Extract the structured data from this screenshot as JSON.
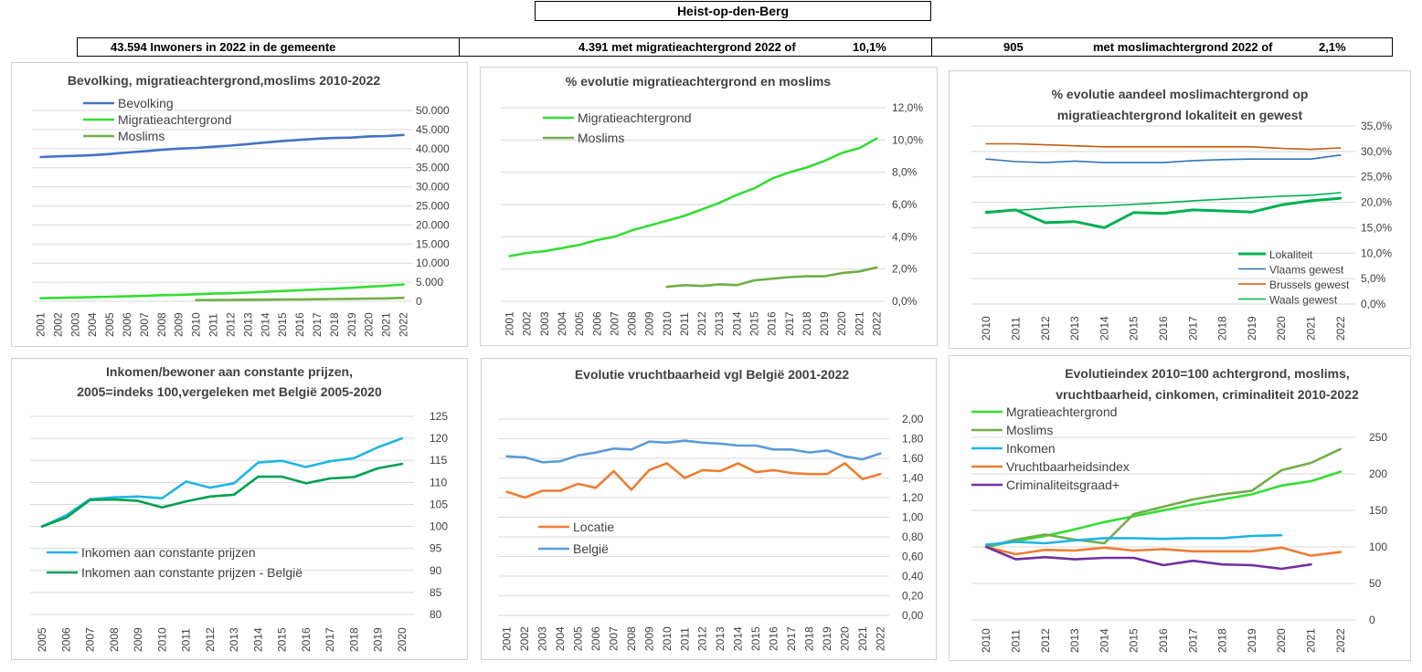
{
  "header": {
    "municipality": "Heist-op-den-Berg",
    "stat1": "43.594 Inwoners in 2022 in de gemeente",
    "stat2_text": "4.391 met migratieachtergrond 2022 of",
    "stat2_pct": "10,1%",
    "stat3_num": "905",
    "stat3_text": "met moslimachtergrond 2022 of",
    "stat3_pct": "2,1%"
  },
  "chart_data": [
    {
      "id": "c1",
      "type": "line",
      "title": [
        "Bevolking, migratieachtergrond,moslims  2010-2022"
      ],
      "x": [
        "2001",
        "2002",
        "2003",
        "2004",
        "2005",
        "2006",
        "2007",
        "2008",
        "2009",
        "2010",
        "2011",
        "2012",
        "2013",
        "2014",
        "2015",
        "2016",
        "2017",
        "2018",
        "2019",
        "2020",
        "2021",
        "2022"
      ],
      "ylim": [
        0,
        50000
      ],
      "yticks": [
        "0",
        "5.000",
        "10.000",
        "15.000",
        "20.000",
        "25.000",
        "30.000",
        "35.000",
        "40.000",
        "45.000",
        "50.000"
      ],
      "grid": true,
      "series": [
        {
          "name": "Bevolking",
          "color": "#4472C4",
          "values": [
            37800,
            38000,
            38100,
            38300,
            38600,
            39000,
            39300,
            39700,
            40000,
            40200,
            40500,
            40800,
            41200,
            41600,
            42000,
            42300,
            42600,
            42800,
            42900,
            43200,
            43300,
            43594
          ]
        },
        {
          "name": "Migratieachtergrond",
          "color": "#33DD33",
          "values": [
            800,
            900,
            1000,
            1100,
            1200,
            1300,
            1400,
            1600,
            1700,
            1850,
            2000,
            2100,
            2300,
            2500,
            2700,
            2900,
            3100,
            3300,
            3550,
            3800,
            4100,
            4391
          ]
        },
        {
          "name": "Moslims",
          "color": "#70AD47",
          "values": [
            null,
            null,
            null,
            null,
            null,
            null,
            null,
            null,
            null,
            300,
            330,
            350,
            400,
            430,
            470,
            500,
            550,
            600,
            650,
            710,
            760,
            905
          ]
        }
      ]
    },
    {
      "id": "c2",
      "type": "line",
      "title": [
        "% evolutie migratieachtergrond  en moslims"
      ],
      "x": [
        "2001",
        "2002",
        "2003",
        "2004",
        "2005",
        "2006",
        "2007",
        "2008",
        "2009",
        "2010",
        "2011",
        "2012",
        "2013",
        "2014",
        "2015",
        "2016",
        "2017",
        "2018",
        "2019",
        "2020",
        "2021",
        "2022"
      ],
      "ylim": [
        0,
        12
      ],
      "yticks": [
        "0,0%",
        "2,0%",
        "4,0%",
        "6,0%",
        "8,0%",
        "10,0%",
        "12,0%"
      ],
      "grid": true,
      "series": [
        {
          "name": "Migratieachtergrond",
          "color": "#33DD33",
          "values": [
            2.8,
            3.0,
            3.1,
            3.3,
            3.5,
            3.8,
            4.0,
            4.4,
            4.7,
            5.0,
            5.3,
            5.7,
            6.1,
            6.6,
            7.0,
            7.6,
            8.0,
            8.3,
            8.7,
            9.2,
            9.5,
            10.1
          ]
        },
        {
          "name": "Moslims",
          "color": "#70AD47",
          "values": [
            null,
            null,
            null,
            null,
            null,
            null,
            null,
            null,
            null,
            0.9,
            1.0,
            0.95,
            1.05,
            1.0,
            1.3,
            1.4,
            1.5,
            1.55,
            1.55,
            1.75,
            1.85,
            2.1
          ]
        }
      ]
    },
    {
      "id": "c3",
      "type": "line",
      "title": [
        "% evolutie aandeel moslimachtergrond op",
        "migratieachtergrond lokaliteit en gewest"
      ],
      "x": [
        "2010",
        "2011",
        "2012",
        "2013",
        "2014",
        "2015",
        "2016",
        "2017",
        "2018",
        "2019",
        "2020",
        "2021",
        "2022"
      ],
      "ylim": [
        0,
        35
      ],
      "yticks": [
        "0,0%",
        "5,0%",
        "10,0%",
        "15,0%",
        "20,0%",
        "25,0%",
        "30,0%",
        "35,0%"
      ],
      "grid": true,
      "series": [
        {
          "name": "Lokaliteit",
          "color": "#00B050",
          "width": 3,
          "values": [
            18.0,
            18.5,
            16.0,
            16.2,
            15.0,
            18.0,
            17.8,
            18.5,
            18.3,
            18.1,
            19.5,
            20.3,
            20.8
          ]
        },
        {
          "name": "Vlaams gewest",
          "color": "#2E75B6",
          "width": 1.6,
          "values": [
            28.5,
            28.0,
            27.8,
            28.1,
            27.8,
            27.8,
            27.8,
            28.2,
            28.4,
            28.5,
            28.5,
            28.5,
            29.3
          ]
        },
        {
          "name": "Brussels gewest",
          "color": "#C55A11",
          "width": 1.6,
          "values": [
            31.5,
            31.5,
            31.3,
            31.1,
            30.9,
            30.9,
            30.9,
            30.9,
            30.9,
            30.9,
            30.6,
            30.4,
            30.7
          ]
        },
        {
          "name": "Waals gewest",
          "color": "#00B050",
          "width": 1.6,
          "values": [
            18.2,
            18.4,
            18.8,
            19.1,
            19.3,
            19.6,
            19.9,
            20.3,
            20.6,
            20.9,
            21.2,
            21.4,
            21.9
          ]
        }
      ]
    },
    {
      "id": "c4",
      "type": "line",
      "title": [
        "Inkomen/bewoner aan constante prijzen,",
        "2005=indeks 100,vergeleken met België 2005-2020"
      ],
      "x": [
        "2005",
        "2006",
        "2007",
        "2008",
        "2009",
        "2010",
        "2011",
        "2012",
        "2013",
        "2014",
        "2015",
        "2016",
        "2017",
        "2018",
        "2019",
        "2020"
      ],
      "ylim": [
        80,
        125
      ],
      "yticks": [
        "80",
        "85",
        "90",
        "95",
        "100",
        "105",
        "110",
        "115",
        "120",
        "125"
      ],
      "grid": true,
      "series": [
        {
          "name": "Inkomen aan constante prijzen",
          "color": "#1FB4E6",
          "values": [
            100,
            102.5,
            106.2,
            106.6,
            106.8,
            106.4,
            110.2,
            108.8,
            109.8,
            114.5,
            114.9,
            113.5,
            114.8,
            115.5,
            118.0,
            120.0
          ]
        },
        {
          "name": "Inkomen aan constante prijzen - België",
          "color": "#00A050",
          "values": [
            100,
            102.0,
            106.0,
            106.1,
            105.8,
            104.3,
            105.7,
            106.8,
            107.2,
            111.3,
            111.3,
            109.8,
            110.9,
            111.2,
            113.2,
            114.2
          ]
        }
      ]
    },
    {
      "id": "c5",
      "type": "line",
      "title": [
        "Evolutie vruchtbaarheid vgl België 2001-2022"
      ],
      "x": [
        "2001",
        "2002",
        "2003",
        "2004",
        "2005",
        "2006",
        "2007",
        "2008",
        "2009",
        "2010",
        "2011",
        "2012",
        "2013",
        "2014",
        "2015",
        "2016",
        "2017",
        "2018",
        "2019",
        "2020",
        "2021",
        "2022"
      ],
      "ylim": [
        0,
        2
      ],
      "yticks": [
        "0,00",
        "0,20",
        "0,40",
        "0,60",
        "0,80",
        "1,00",
        "1,20",
        "1,40",
        "1,60",
        "1,80",
        "2,00"
      ],
      "grid": true,
      "series": [
        {
          "name": "Locatie",
          "color": "#ED7D31",
          "values": [
            1.26,
            1.2,
            1.27,
            1.27,
            1.34,
            1.3,
            1.47,
            1.28,
            1.48,
            1.55,
            1.4,
            1.48,
            1.47,
            1.55,
            1.46,
            1.48,
            1.45,
            1.44,
            1.44,
            1.55,
            1.39,
            1.44
          ]
        },
        {
          "name": "België",
          "color": "#5B9BD5",
          "values": [
            1.62,
            1.61,
            1.56,
            1.57,
            1.63,
            1.66,
            1.7,
            1.69,
            1.77,
            1.76,
            1.78,
            1.76,
            1.75,
            1.73,
            1.73,
            1.69,
            1.69,
            1.66,
            1.68,
            1.62,
            1.59,
            1.65
          ]
        }
      ]
    },
    {
      "id": "c6",
      "type": "line",
      "title": [
        "Evolutieindex 2010=100 achtergrond, moslims,",
        "vruchtbaarheid, cinkomen, criminaliteit  2010-2022"
      ],
      "x": [
        "2010",
        "2011",
        "2012",
        "2013",
        "2014",
        "2015",
        "2016",
        "2017",
        "2018",
        "2019",
        "2020",
        "2021",
        "2022"
      ],
      "ylim": [
        0,
        250
      ],
      "yticks": [
        "0",
        "50",
        "100",
        "150",
        "200",
        "250"
      ],
      "grid": true,
      "series": [
        {
          "name": "Mgratieachtergrond",
          "color": "#33DD33",
          "values": [
            100,
            108,
            115,
            124,
            134,
            142,
            150,
            158,
            165,
            172,
            184,
            190,
            203
          ]
        },
        {
          "name": "Moslims",
          "color": "#70AD47",
          "values": [
            100,
            110,
            117,
            110,
            105,
            145,
            155,
            165,
            172,
            177,
            205,
            215,
            234
          ]
        },
        {
          "name": "Inkomen",
          "color": "#1FB4E6",
          "values": [
            103,
            107,
            105,
            109,
            112,
            112,
            111,
            112,
            112,
            115,
            116,
            null,
            null
          ]
        },
        {
          "name": "Vruchtbaarheidsindex",
          "color": "#ED7D31",
          "values": [
            100,
            90,
            96,
            95,
            99,
            95,
            97,
            94,
            94,
            94,
            99,
            88,
            93
          ]
        },
        {
          "name": "Criminaliteitsgraad+",
          "color": "#7030A0",
          "values": [
            100,
            83,
            86,
            83,
            85,
            85,
            75,
            81,
            76,
            75,
            70,
            76,
            null
          ]
        }
      ]
    }
  ]
}
